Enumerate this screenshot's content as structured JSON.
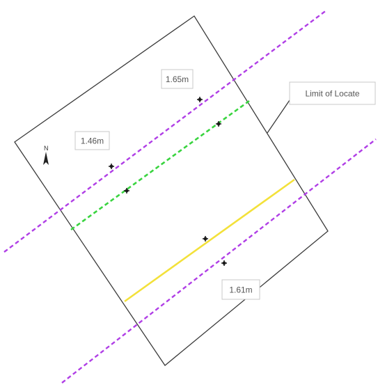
{
  "labels": {
    "depth_upper": "1.65m",
    "depth_left": "1.46m",
    "depth_lower": "1.61m",
    "limit_of_locate": "Limit of Locate"
  },
  "north_arrow": {
    "letter": "N",
    "icon": "north-arrow-icon"
  },
  "legend": [],
  "colors": {
    "boundary": "#3a3a3a",
    "purple_line": "#b03ee6",
    "green_line": "#39d43f",
    "yellow_line": "#f3e13a",
    "marker": "#1a1a1a",
    "label_border": "#c8c8c8",
    "label_text": "#555555"
  },
  "lines": [
    {
      "name": "utility-line-purple-upper",
      "color": "purple",
      "style": "dashed"
    },
    {
      "name": "utility-line-green",
      "color": "green",
      "style": "dashed"
    },
    {
      "name": "utility-line-yellow",
      "color": "yellow",
      "style": "solid"
    },
    {
      "name": "utility-line-purple-lower",
      "color": "purple",
      "style": "dashed"
    }
  ]
}
